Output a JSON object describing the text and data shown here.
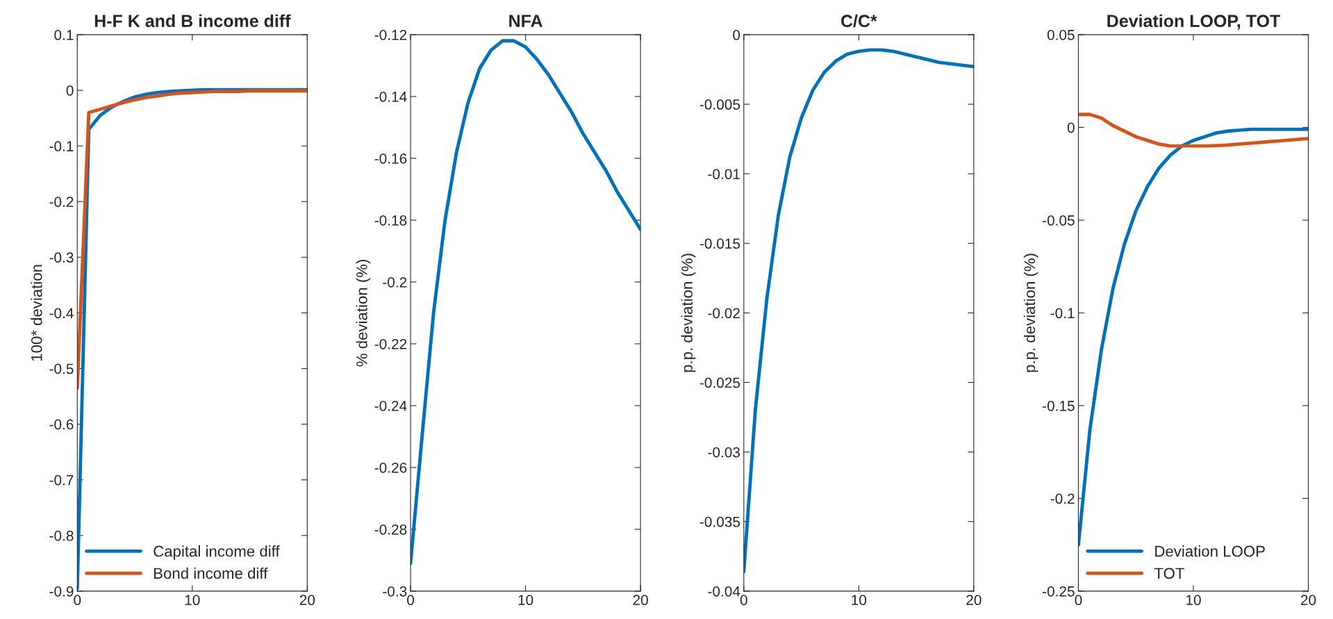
{
  "chart_data": [
    {
      "type": "line",
      "title": "H-F K and B income diff",
      "ylabel": "100* deviation",
      "x": [
        0,
        1,
        2,
        3,
        4,
        5,
        6,
        7,
        8,
        9,
        10,
        11,
        12,
        13,
        14,
        15,
        16,
        17,
        18,
        19,
        20
      ],
      "xlim": [
        0,
        20
      ],
      "xticks": [
        0,
        10,
        20
      ],
      "ylim": [
        -0.9,
        0.1
      ],
      "yticks": [
        -0.9,
        -0.8,
        -0.7,
        -0.6,
        -0.5,
        -0.4,
        -0.3,
        -0.2,
        -0.1,
        0,
        0.1
      ],
      "legend": "bottom left",
      "grid": false,
      "series": [
        {
          "name": "Capital income diff",
          "color": "#0072bd",
          "values": [
            -0.895,
            -0.07,
            -0.045,
            -0.03,
            -0.02,
            -0.012,
            -0.007,
            -0.004,
            -0.002,
            -0.001,
            0,
            0.001,
            0.001,
            0.001,
            0.001,
            0.001,
            0.001,
            0.001,
            0.001,
            0.001,
            0.001
          ]
        },
        {
          "name": "Bond income diff",
          "color": "#d95319",
          "values": [
            -0.535,
            -0.04,
            -0.034,
            -0.028,
            -0.022,
            -0.017,
            -0.013,
            -0.01,
            -0.007,
            -0.005,
            -0.004,
            -0.003,
            -0.002,
            -0.002,
            -0.002,
            -0.001,
            -0.001,
            -0.001,
            -0.001,
            -0.001,
            -0.001
          ]
        }
      ]
    },
    {
      "type": "line",
      "title": "NFA",
      "ylabel": "% deviation (%)",
      "x": [
        0,
        1,
        2,
        3,
        4,
        5,
        6,
        7,
        8,
        9,
        10,
        11,
        12,
        13,
        14,
        15,
        16,
        17,
        18,
        19,
        20
      ],
      "xlim": [
        0,
        20
      ],
      "xticks": [
        0,
        10,
        20
      ],
      "ylim": [
        -0.3,
        -0.12
      ],
      "yticks": [
        -0.3,
        -0.28,
        -0.26,
        -0.24,
        -0.22,
        -0.2,
        -0.18,
        -0.16,
        -0.14,
        -0.12
      ],
      "grid": false,
      "series": [
        {
          "color": "#0072bd",
          "values": [
            -0.291,
            -0.25,
            -0.21,
            -0.18,
            -0.158,
            -0.142,
            -0.131,
            -0.125,
            -0.122,
            -0.122,
            -0.124,
            -0.128,
            -0.133,
            -0.139,
            -0.145,
            -0.152,
            -0.158,
            -0.164,
            -0.171,
            -0.177,
            -0.183
          ]
        }
      ]
    },
    {
      "type": "line",
      "title": "C/C*",
      "ylabel": "p.p. deviation (%)",
      "x": [
        0,
        1,
        2,
        3,
        4,
        5,
        6,
        7,
        8,
        9,
        10,
        11,
        12,
        13,
        14,
        15,
        16,
        17,
        18,
        19,
        20
      ],
      "xlim": [
        0,
        20
      ],
      "xticks": [
        0,
        10,
        20
      ],
      "ylim": [
        -0.04,
        0
      ],
      "yticks": [
        -0.04,
        -0.035,
        -0.03,
        -0.025,
        -0.02,
        -0.015,
        -0.01,
        -0.005,
        0
      ],
      "grid": false,
      "series": [
        {
          "color": "#0072bd",
          "values": [
            -0.0386,
            -0.027,
            -0.019,
            -0.013,
            -0.0088,
            -0.006,
            -0.004,
            -0.0027,
            -0.0019,
            -0.0014,
            -0.0012,
            -0.0011,
            -0.0011,
            -0.0012,
            -0.0014,
            -0.0016,
            -0.0018,
            -0.002,
            -0.0021,
            -0.0022,
            -0.0023
          ]
        }
      ]
    },
    {
      "type": "line",
      "title": "Deviation LOOP, TOT",
      "ylabel": "p.p. deviation (%)",
      "x": [
        0,
        1,
        2,
        3,
        4,
        5,
        6,
        7,
        8,
        9,
        10,
        11,
        12,
        13,
        14,
        15,
        16,
        17,
        18,
        19,
        20
      ],
      "xlim": [
        0,
        20
      ],
      "xticks": [
        0,
        10,
        20
      ],
      "ylim": [
        -0.25,
        0.05
      ],
      "yticks": [
        -0.25,
        -0.2,
        -0.15,
        -0.1,
        -0.05,
        0,
        0.05
      ],
      "legend": "bottom left",
      "grid": false,
      "series": [
        {
          "name": "Deviation LOOP",
          "color": "#0072bd",
          "values": [
            -0.225,
            -0.163,
            -0.12,
            -0.087,
            -0.063,
            -0.045,
            -0.032,
            -0.022,
            -0.015,
            -0.01,
            -0.007,
            -0.005,
            -0.003,
            -0.002,
            -0.0015,
            -0.001,
            -0.001,
            -0.001,
            -0.001,
            -0.001,
            -0.001
          ]
        },
        {
          "name": "TOT",
          "color": "#d95319",
          "values": [
            0.007,
            0.007,
            0.005,
            0.001,
            -0.002,
            -0.005,
            -0.007,
            -0.009,
            -0.01,
            -0.01,
            -0.01,
            -0.01,
            -0.0098,
            -0.0095,
            -0.009,
            -0.0085,
            -0.008,
            -0.0075,
            -0.007,
            -0.0065,
            -0.006
          ]
        }
      ]
    }
  ]
}
